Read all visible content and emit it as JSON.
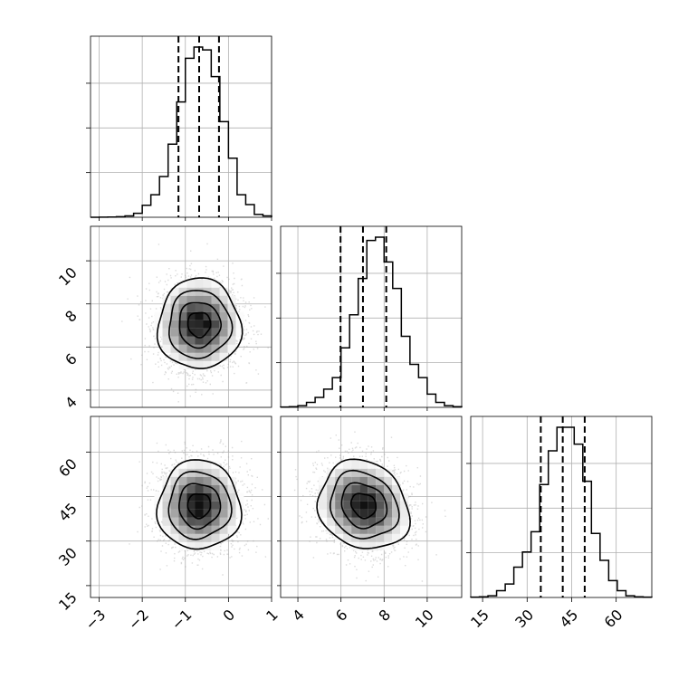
{
  "chart_data": {
    "type": "corner",
    "parameters": [
      {
        "mean": -0.68,
        "sigma": 0.48,
        "quantiles": [
          -1.16,
          -0.68,
          -0.22
        ]
      },
      {
        "mean": 7.05,
        "sigma": 1.05,
        "quantiles": [
          5.98,
          7.02,
          8.1
        ]
      },
      {
        "mean": 42.0,
        "sigma": 7.5,
        "quantiles": [
          34.6,
          42.0,
          49.4
        ]
      }
    ],
    "ranges": [
      [
        -3.2,
        1.0
      ],
      [
        3.2,
        11.6
      ],
      [
        11.0,
        72.0
      ]
    ],
    "ticks": [
      [
        "−3",
        "−2",
        "−1",
        "0",
        "1"
      ],
      [
        "4",
        "6",
        "8",
        "10"
      ],
      [
        "15",
        "30",
        "45",
        "60"
      ]
    ],
    "tick_values": [
      [
        -3,
        -2,
        -1,
        0,
        1
      ],
      [
        4,
        6,
        8,
        10
      ],
      [
        15,
        30,
        45,
        60
      ]
    ],
    "histograms": [
      {
        "bins": [
          -3.2,
          1.0
        ],
        "counts": [
          0,
          1,
          2,
          4,
          10,
          28,
          85,
          160,
          290,
          520,
          820,
          1130,
          1210,
          1190,
          1000,
          680,
          420,
          160,
          90,
          20,
          10
        ]
      },
      {
        "bins": [
          3.2,
          11.6
        ],
        "counts": [
          2,
          4,
          10,
          30,
          60,
          110,
          180,
          360,
          560,
          780,
          1010,
          1030,
          880,
          720,
          430,
          260,
          180,
          80,
          30,
          10,
          4
        ]
      },
      {
        "bins": [
          11.0,
          72.0
        ],
        "counts": [
          2,
          4,
          10,
          40,
          80,
          180,
          270,
          390,
          670,
          870,
          1010,
          1010,
          910,
          690,
          380,
          220,
          100,
          40,
          10,
          4,
          2
        ]
      }
    ],
    "correlations": {
      "1-0": 0.0,
      "2-0": 0.0,
      "2-1": -0.15
    },
    "grid": true,
    "title": "",
    "xlabel": "",
    "ylabel": ""
  },
  "colors": {
    "line": "#000000",
    "grid": "#b0b0b0",
    "points": "#999999"
  }
}
